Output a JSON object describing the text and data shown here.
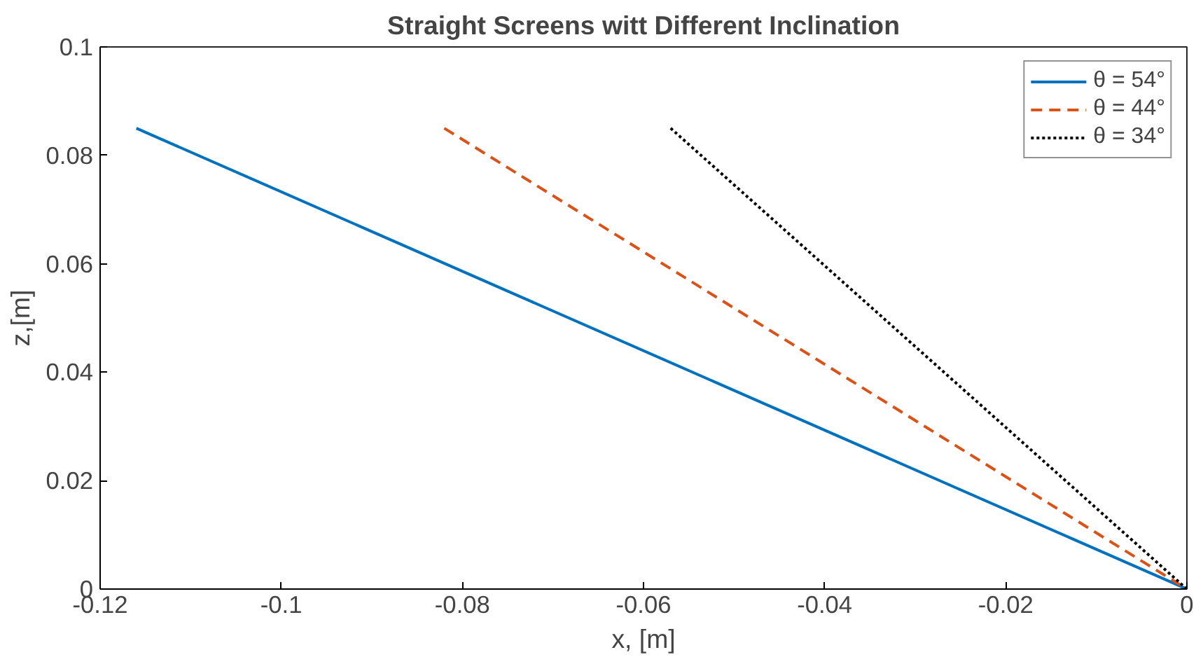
{
  "chart_data": {
    "type": "line",
    "title": "Straight Screens witt Different Inclination",
    "xlabel": "x, [m]",
    "ylabel": "z,[m]",
    "xlim": [
      -0.12,
      0
    ],
    "ylim": [
      0,
      0.1
    ],
    "xticks": [
      {
        "value": -0.12,
        "label": "-0.12"
      },
      {
        "value": -0.1,
        "label": "-0.1"
      },
      {
        "value": -0.08,
        "label": "-0.08"
      },
      {
        "value": -0.06,
        "label": "-0.06"
      },
      {
        "value": -0.04,
        "label": "-0.04"
      },
      {
        "value": -0.02,
        "label": "-0.02"
      },
      {
        "value": 0,
        "label": "0"
      }
    ],
    "yticks": [
      {
        "value": 0,
        "label": "0"
      },
      {
        "value": 0.02,
        "label": "0.02"
      },
      {
        "value": 0.04,
        "label": "0.04"
      },
      {
        "value": 0.06,
        "label": "0.06"
      },
      {
        "value": 0.08,
        "label": "0.08"
      },
      {
        "value": 0.1,
        "label": "0.1"
      }
    ],
    "grid": false,
    "legend": "top right",
    "marker": "none",
    "series": [
      {
        "name": "θ = 54°",
        "color": "#0072bd",
        "line_style": "solid",
        "x": [
          -0.116,
          0
        ],
        "values": [
          0.085,
          0
        ]
      },
      {
        "name": "θ = 44°",
        "color": "#d95319",
        "line_style": "dashed",
        "x": [
          -0.082,
          0
        ],
        "values": [
          0.085,
          0
        ]
      },
      {
        "name": "θ = 34°",
        "color": "#000000",
        "line_style": "dotted",
        "x": [
          -0.057,
          0
        ],
        "values": [
          0.085,
          0
        ]
      }
    ]
  }
}
